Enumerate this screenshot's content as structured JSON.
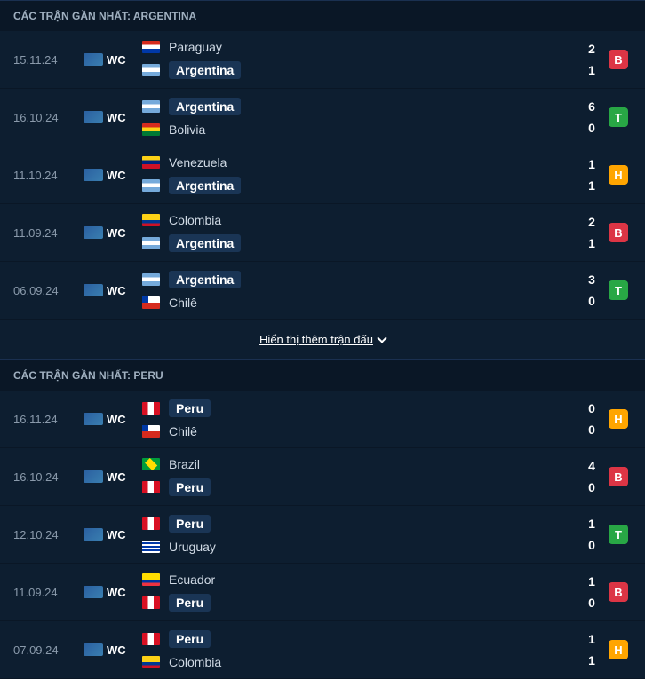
{
  "sections": [
    {
      "title": "CÁC TRẬN GẦN NHẤT: ARGENTINA",
      "matches": [
        {
          "date": "15.11.24",
          "comp": "WC",
          "home": "Paraguay",
          "homeFlag": "paraguay",
          "away": "Argentina",
          "awayFlag": "argentina",
          "homeScore": "2",
          "awayScore": "1",
          "result": "B",
          "highlightAway": true
        },
        {
          "date": "16.10.24",
          "comp": "WC",
          "home": "Argentina",
          "homeFlag": "argentina",
          "away": "Bolivia",
          "awayFlag": "bolivia",
          "homeScore": "6",
          "awayScore": "0",
          "result": "T",
          "highlightHome": true
        },
        {
          "date": "11.10.24",
          "comp": "WC",
          "home": "Venezuela",
          "homeFlag": "venezuela",
          "away": "Argentina",
          "awayFlag": "argentina",
          "homeScore": "1",
          "awayScore": "1",
          "result": "H",
          "highlightAway": true
        },
        {
          "date": "11.09.24",
          "comp": "WC",
          "home": "Colombia",
          "homeFlag": "colombia",
          "away": "Argentina",
          "awayFlag": "argentina",
          "homeScore": "2",
          "awayScore": "1",
          "result": "B",
          "highlightAway": true
        },
        {
          "date": "06.09.24",
          "comp": "WC",
          "home": "Argentina",
          "homeFlag": "argentina",
          "away": "Chilê",
          "awayFlag": "chile",
          "homeScore": "3",
          "awayScore": "0",
          "result": "T",
          "highlightHome": true
        }
      ]
    },
    {
      "title": "CÁC TRẬN GẦN NHẤT: PERU",
      "matches": [
        {
          "date": "16.11.24",
          "comp": "WC",
          "home": "Peru",
          "homeFlag": "peru",
          "away": "Chilê",
          "awayFlag": "chile",
          "homeScore": "0",
          "awayScore": "0",
          "result": "H",
          "highlightHome": true
        },
        {
          "date": "16.10.24",
          "comp": "WC",
          "home": "Brazil",
          "homeFlag": "brazil",
          "away": "Peru",
          "awayFlag": "peru",
          "homeScore": "4",
          "awayScore": "0",
          "result": "B",
          "highlightAway": true
        },
        {
          "date": "12.10.24",
          "comp": "WC",
          "home": "Peru",
          "homeFlag": "peru",
          "away": "Uruguay",
          "awayFlag": "uruguay",
          "homeScore": "1",
          "awayScore": "0",
          "result": "T",
          "highlightHome": true
        },
        {
          "date": "11.09.24",
          "comp": "WC",
          "home": "Ecuador",
          "homeFlag": "ecuador",
          "away": "Peru",
          "awayFlag": "peru",
          "homeScore": "1",
          "awayScore": "0",
          "result": "B",
          "highlightAway": true
        },
        {
          "date": "07.09.24",
          "comp": "WC",
          "home": "Peru",
          "homeFlag": "peru",
          "away": "Colombia",
          "awayFlag": "colombia",
          "homeScore": "1",
          "awayScore": "1",
          "result": "H",
          "highlightHome": true
        }
      ]
    }
  ],
  "showMoreLabel": "Hiển thị thêm trận đấu",
  "colors": {
    "resultB": "#dc3545",
    "resultT": "#28a745",
    "resultH": "#ffa500",
    "background": "#0d1e30",
    "headerBg": "#0a1726"
  }
}
